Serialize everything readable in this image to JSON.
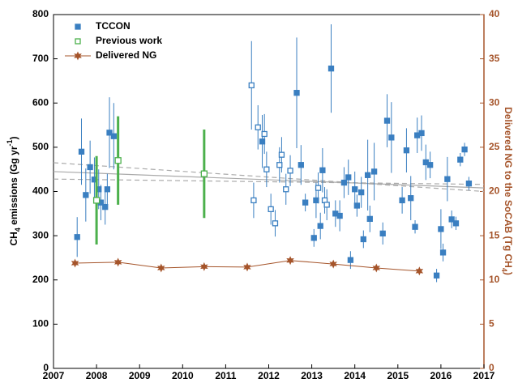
{
  "chart_data": {
    "type": "scatter",
    "ylabel_parts": [
      "CH",
      "4",
      " emissions (Gg yr",
      "-1",
      ")"
    ],
    "y2label_parts": [
      "Delivered NG to the SoCAB (Tg CH",
      "4",
      ")"
    ],
    "xlim": [
      2007,
      2017
    ],
    "xticks": [
      2007,
      2008,
      2009,
      2010,
      2011,
      2012,
      2013,
      2014,
      2015,
      2016,
      2017
    ],
    "ylim": [
      0,
      800
    ],
    "yticks": [
      0,
      100,
      200,
      300,
      400,
      500,
      600,
      700,
      800
    ],
    "y2lim": [
      0,
      40
    ],
    "y2ticks": [
      0,
      5,
      10,
      15,
      20,
      25,
      30,
      35,
      40
    ],
    "y2color": "#a5542a",
    "legend": "upper left",
    "series": [
      {
        "name": "TCCON",
        "color": "#3a7fc1",
        "x": [
          2007.55,
          2007.65,
          2007.75,
          2007.85,
          2007.95,
          2008.05,
          2008.1,
          2008.2,
          2008.25,
          2008.3,
          2008.4,
          2011.6,
          2011.65,
          2011.75,
          2011.85,
          2011.9,
          2011.95,
          2012.05,
          2012.15,
          2012.25,
          2012.3,
          2012.4,
          2012.5,
          2012.65,
          2012.75,
          2012.85,
          2013.05,
          2013.1,
          2013.15,
          2013.2,
          2013.25,
          2013.3,
          2013.35,
          2013.45,
          2013.55,
          2013.65,
          2013.75,
          2013.85,
          2013.9,
          2014.0,
          2014.05,
          2014.15,
          2014.2,
          2014.3,
          2014.35,
          2014.45,
          2014.65,
          2014.75,
          2014.85,
          2015.1,
          2015.2,
          2015.3,
          2015.4,
          2015.45,
          2015.55,
          2015.65,
          2015.75,
          2015.9,
          2016.0,
          2016.05,
          2016.15,
          2016.25,
          2016.35,
          2016.45,
          2016.55,
          2016.65
        ],
        "values": [
          297,
          490,
          392,
          455,
          427,
          405,
          375,
          365,
          405,
          533,
          525,
          640,
          380,
          545,
          513,
          530,
          450,
          360,
          328,
          460,
          483,
          405,
          447,
          623,
          460,
          375,
          295,
          380,
          408,
          322,
          448,
          380,
          370,
          678,
          350,
          345,
          420,
          432,
          245,
          405,
          368,
          398,
          292,
          437,
          338,
          445,
          305,
          560,
          522,
          380,
          493,
          385,
          320,
          527,
          532,
          466,
          460,
          210,
          315,
          262,
          428,
          337,
          328,
          472,
          495,
          418
        ],
        "errors": [
          45,
          75,
          60,
          60,
          50,
          45,
          40,
          40,
          35,
          80,
          75,
          100,
          40,
          50,
          60,
          45,
          40,
          35,
          30,
          40,
          40,
          35,
          35,
          125,
          45,
          20,
          20,
          40,
          35,
          30,
          50,
          30,
          35,
          100,
          30,
          35,
          35,
          40,
          20,
          40,
          25,
          35,
          20,
          80,
          30,
          65,
          25,
          60,
          80,
          30,
          50,
          50,
          15,
          40,
          40,
          40,
          30,
          15,
          45,
          20,
          50,
          20,
          15,
          15,
          15,
          15
        ],
        "open": [
          false,
          false,
          false,
          false,
          false,
          false,
          false,
          false,
          false,
          false,
          false,
          true,
          true,
          true,
          false,
          true,
          true,
          true,
          true,
          true,
          true,
          true,
          true,
          false,
          false,
          false,
          false,
          false,
          true,
          false,
          false,
          true,
          true,
          false,
          false,
          false,
          false,
          false,
          false,
          false,
          false,
          false,
          false,
          false,
          false,
          false,
          false,
          false,
          false,
          false,
          false,
          false,
          false,
          false,
          false,
          false,
          false,
          false,
          false,
          false,
          false,
          false,
          false,
          false,
          false,
          false
        ]
      },
      {
        "name": "Previous work",
        "color": "#4cb04c",
        "x": [
          2008.0,
          2008.5,
          2010.5
        ],
        "values": [
          380,
          470,
          440
        ],
        "errors": [
          100,
          100,
          100
        ],
        "open": [
          true,
          true,
          true
        ]
      },
      {
        "name": "Delivered NG",
        "color": "#a5542a",
        "axis": "y2",
        "marker": "star",
        "x": [
          2007.5,
          2008.5,
          2009.5,
          2010.5,
          2011.5,
          2012.5,
          2013.5,
          2014.5,
          2015.5
        ],
        "values": [
          11.9,
          12.0,
          11.35,
          11.5,
          11.45,
          12.2,
          11.8,
          11.35,
          11.0
        ]
      }
    ],
    "trend_lines": [
      {
        "x": [
          2007,
          2017
        ],
        "values": [
          445,
          408
        ],
        "style": "solid"
      },
      {
        "x": [
          2007,
          2017
        ],
        "values": [
          465,
          400
        ],
        "style": "dashed"
      },
      {
        "x": [
          2007,
          2017
        ],
        "values": [
          428,
          416
        ],
        "style": "dashed"
      }
    ]
  }
}
